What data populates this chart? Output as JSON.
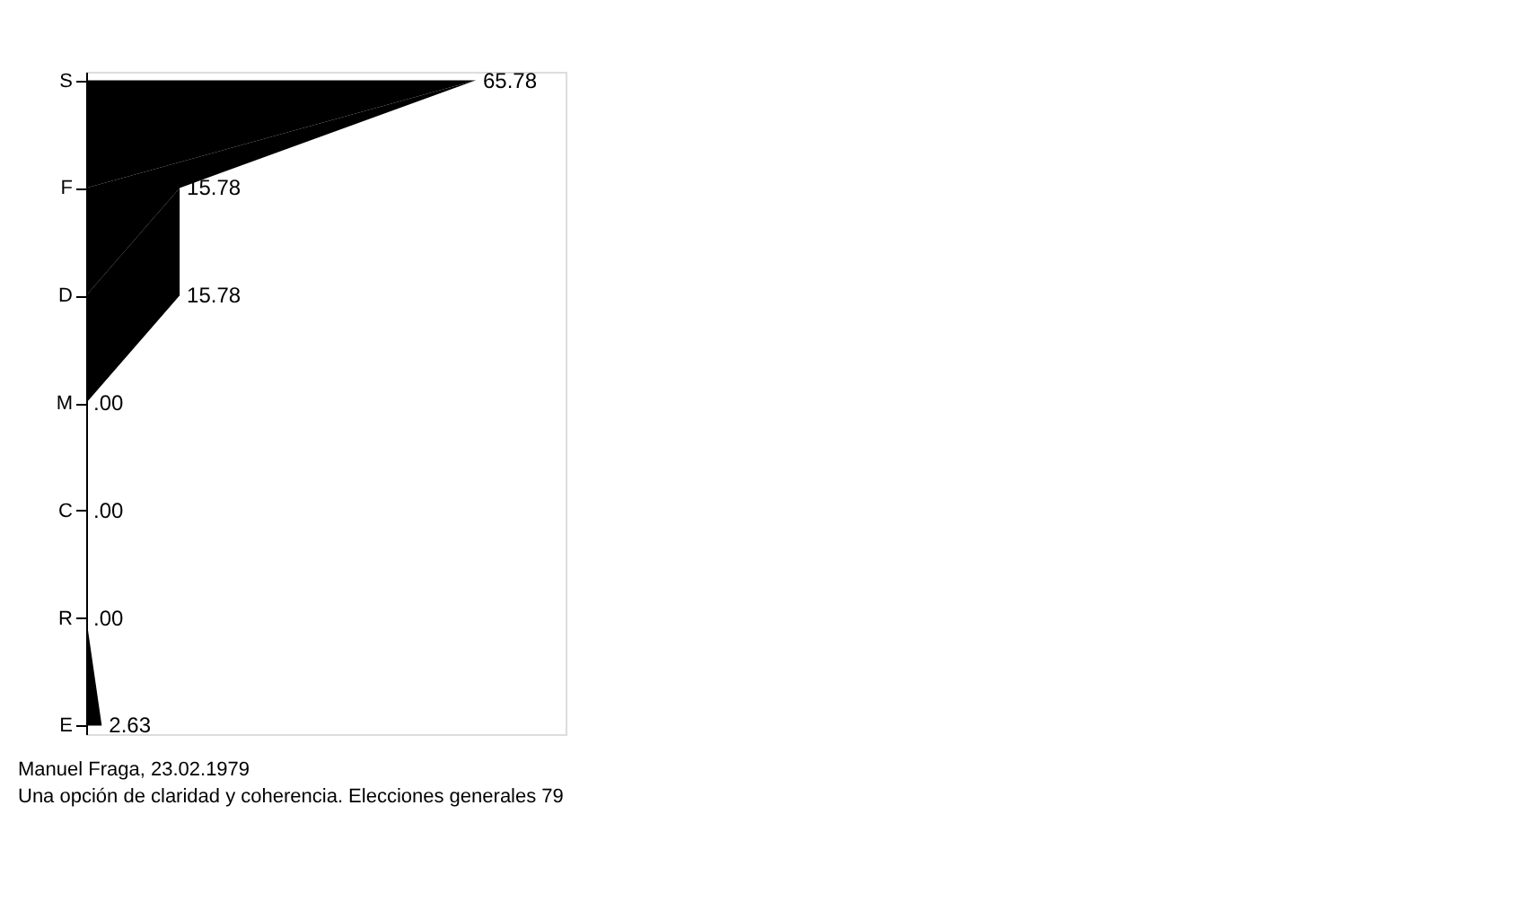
{
  "chart_data": {
    "type": "area",
    "orientation": "horizontal",
    "categories": [
      "S",
      "F",
      "D",
      "M",
      "C",
      "R",
      "E"
    ],
    "values": [
      65.78,
      15.78,
      15.78,
      0,
      0,
      0,
      2.63
    ],
    "value_labels": [
      "65.78",
      "15.78",
      "15.78",
      ".00",
      ".00",
      ".00",
      "2.63"
    ],
    "color": "#000000",
    "tick_labels": "y",
    "grid": false,
    "annotations": [
      "Manuel Fraga, 23.02.1979",
      "Una opción de claridad y coherencia. Elecciones generales 79"
    ]
  }
}
